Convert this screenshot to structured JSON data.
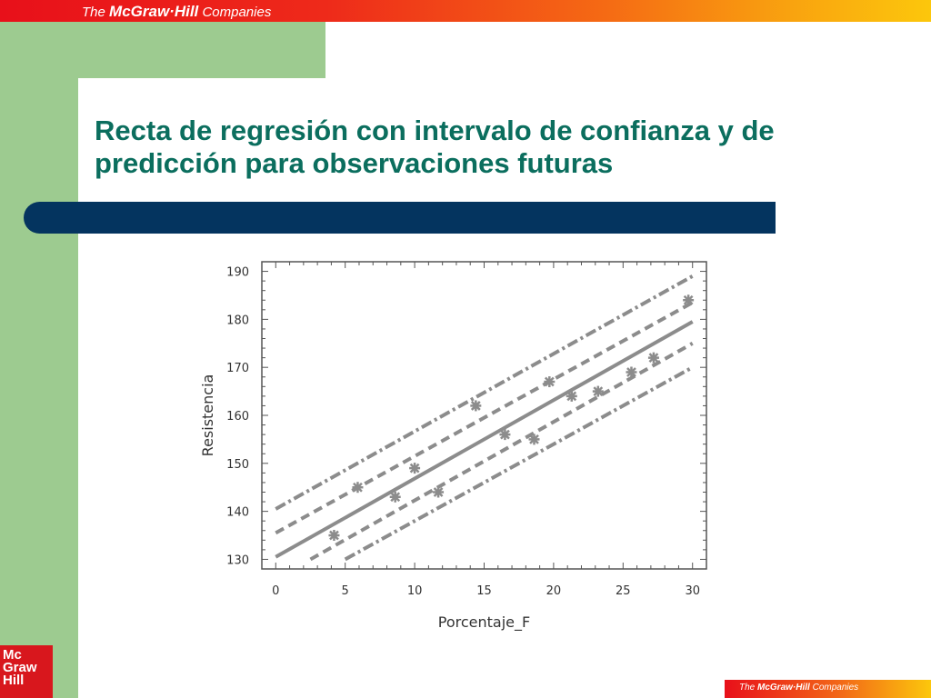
{
  "header": {
    "brand_prefix": "The",
    "brand_name": "McGraw·Hill",
    "brand_suffix": "Companies"
  },
  "slide": {
    "title_line1": "Recta de regresión con intervalo de confianza y de",
    "title_line2": "predicción para observaciones futuras"
  },
  "logo": {
    "line1": "Mc",
    "line2": "Graw",
    "line3": "Hill"
  },
  "footer": {
    "brand_prefix": "The",
    "brand_name": "McGraw·Hill",
    "brand_suffix": "Companies"
  },
  "colors": {
    "title": "#0b6e5e",
    "side_bar": "#9dcb90",
    "accent_bar": "#04345f",
    "banner_start": "#e8101a",
    "banner_end": "#fcc70c",
    "plot_ink": "#8c8c8c"
  },
  "chart_data": {
    "type": "scatter",
    "title": "",
    "xlabel": "Porcentaje_F",
    "ylabel": "Resistencia",
    "xlim": [
      -1,
      31
    ],
    "ylim": [
      128,
      192
    ],
    "x_ticks": [
      0,
      5,
      10,
      15,
      20,
      25,
      30
    ],
    "y_ticks": [
      130,
      140,
      150,
      160,
      170,
      180,
      190
    ],
    "grid": false,
    "points": [
      {
        "x": 4.2,
        "y": 135
      },
      {
        "x": 5.9,
        "y": 145
      },
      {
        "x": 8.6,
        "y": 143
      },
      {
        "x": 10.0,
        "y": 149
      },
      {
        "x": 11.7,
        "y": 144
      },
      {
        "x": 14.4,
        "y": 162
      },
      {
        "x": 16.5,
        "y": 156
      },
      {
        "x": 18.6,
        "y": 155
      },
      {
        "x": 19.7,
        "y": 167
      },
      {
        "x": 21.3,
        "y": 164
      },
      {
        "x": 23.2,
        "y": 165
      },
      {
        "x": 25.6,
        "y": 169
      },
      {
        "x": 27.2,
        "y": 172
      },
      {
        "x": 29.7,
        "y": 184
      }
    ],
    "lines": [
      {
        "name": "",
        "style": "solid",
        "x": [
          0,
          30
        ],
        "y": [
          130.5,
          179.5
        ]
      },
      {
        "name": "",
        "style": "dashed",
        "x": [
          0,
          30
        ],
        "y": [
          135.5,
          183.5
        ]
      },
      {
        "name": "",
        "style": "dashed",
        "x": [
          2.5,
          30
        ],
        "y": [
          130.0,
          175.0
        ]
      },
      {
        "name": "",
        "style": "dashdot",
        "x": [
          0,
          30
        ],
        "y": [
          140.5,
          189.0
        ]
      },
      {
        "name": "",
        "style": "dashdot",
        "x": [
          5,
          30
        ],
        "y": [
          130.0,
          170.0
        ]
      }
    ]
  }
}
